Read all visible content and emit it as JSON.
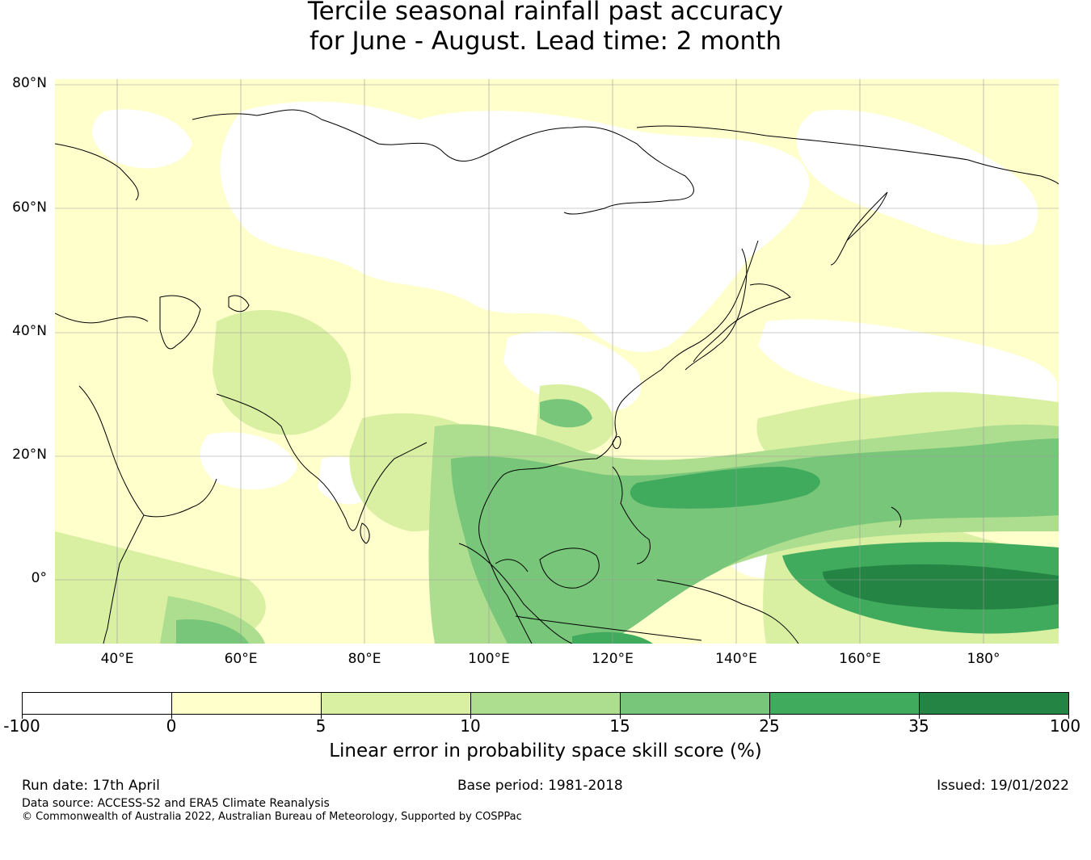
{
  "title": {
    "line1": "Tercile seasonal rainfall past accuracy",
    "line2": "for June - August. Lead time: 2 month"
  },
  "map": {
    "latitude_labels": [
      "80°N",
      "60°N",
      "40°N",
      "20°N",
      "0°"
    ],
    "longitude_labels": [
      "40°E",
      "60°E",
      "80°E",
      "100°E",
      "120°E",
      "140°E",
      "160°E",
      "180°"
    ]
  },
  "colorbar": {
    "labels": [
      "-100",
      "0",
      "5",
      "10",
      "15",
      "25",
      "35",
      "100"
    ],
    "colors": [
      "#ffffff",
      "#ffffcc",
      "#d9f0a3",
      "#addd8e",
      "#78c679",
      "#41ab5d",
      "#238443"
    ],
    "title": "Linear error in probability space skill score (%)"
  },
  "footer": {
    "run_date": "Run date: 17th April",
    "base_period": "Base period: 1981-2018",
    "issued": "Issued: 19/01/2022",
    "data_source": "Data source: ACCESS-S2 and ERA5 Climate Reanalysis",
    "copyright": "© Commonwealth of Australia 2022, Australian Bureau of Meteorology, Supported by COSPPac"
  }
}
